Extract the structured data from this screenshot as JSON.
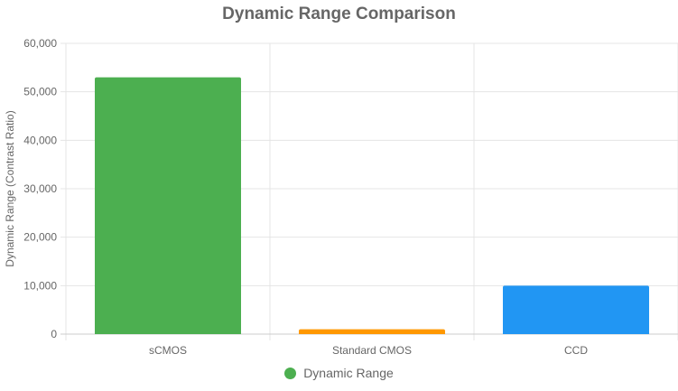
{
  "chart_data": {
    "type": "bar",
    "title": "Dynamic Range Comparison",
    "xlabel": "",
    "ylabel": "Dynamic Range (Contrast Ratio)",
    "categories": [
      "sCMOS",
      "Standard CMOS",
      "CCD"
    ],
    "series": [
      {
        "name": "Dynamic Range",
        "values": [
          53000,
          1000,
          10000
        ],
        "colors": [
          "#4CAF50",
          "#FF9800",
          "#2196F3"
        ]
      }
    ],
    "ylim": [
      0,
      60000
    ],
    "yticks": [
      "0",
      "10,000",
      "20,000",
      "30,000",
      "40,000",
      "50,000",
      "60,000"
    ],
    "grid": true,
    "legend_position": "bottom"
  },
  "legend": {
    "label": "Dynamic Range",
    "color": "#4CAF50"
  }
}
